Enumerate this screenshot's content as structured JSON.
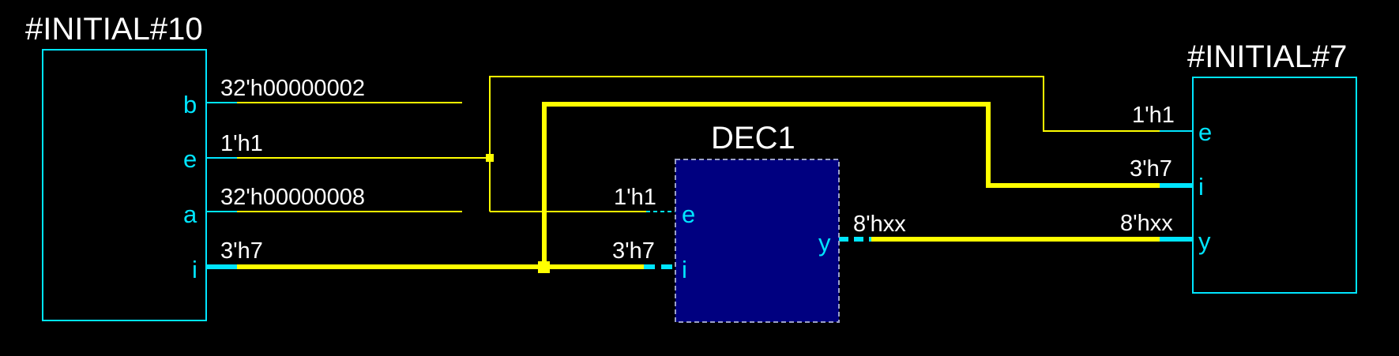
{
  "blocks": {
    "initial10": {
      "title": "#INITIAL#10",
      "ports": {
        "b": "b",
        "e": "e",
        "a": "a",
        "i": "i"
      },
      "signals": {
        "b": "32'h00000002",
        "e": "1'h1",
        "a": "32'h00000008",
        "i": "3'h7"
      }
    },
    "dec1": {
      "title": "DEC1",
      "fill": "#000080",
      "ports": {
        "e": "e",
        "i": "i",
        "y": "y"
      },
      "signals": {
        "e": "1'h1",
        "i": "3'h7",
        "y": "8'hxx"
      }
    },
    "initial7": {
      "title": "#INITIAL#7",
      "ports": {
        "e": "e",
        "i": "i",
        "y": "y"
      },
      "signals": {
        "e": "1'h1",
        "i": "3'h7",
        "y": "8'hxx"
      }
    }
  },
  "colors": {
    "background": "#000000",
    "block_outline": "#00e5ff",
    "wire": "#ffff00",
    "port_label": "#00e5ff",
    "text": "#ffffff"
  }
}
